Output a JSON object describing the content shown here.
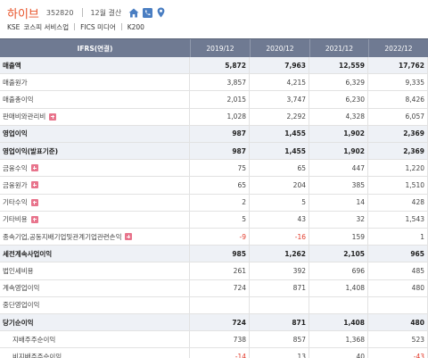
{
  "header": {
    "company": "하이브",
    "code": "352820",
    "fiscal": "12월 결산",
    "market": "KSE",
    "sector": "코스피 서비스업",
    "fics": "FICS 미디어",
    "index": "K200",
    "icons": [
      "home-icon",
      "phone-icon",
      "map-pin-icon"
    ]
  },
  "table": {
    "header_label": "IFRS(연결)",
    "columns": [
      "2019/12",
      "2020/12",
      "2021/12",
      "2022/12"
    ],
    "rows": [
      {
        "label": "매출액",
        "bold": true,
        "indent": 0,
        "expand": false,
        "values": [
          "5,872",
          "7,963",
          "12,559",
          "17,762"
        ]
      },
      {
        "label": "매출원가",
        "bold": false,
        "indent": 1,
        "expand": false,
        "values": [
          "3,857",
          "4,215",
          "6,329",
          "9,335"
        ]
      },
      {
        "label": "매출총이익",
        "bold": false,
        "indent": 1,
        "expand": false,
        "values": [
          "2,015",
          "3,747",
          "6,230",
          "8,426"
        ]
      },
      {
        "label": "판매비와관리비",
        "bold": false,
        "indent": 1,
        "expand": true,
        "values": [
          "1,028",
          "2,292",
          "4,328",
          "6,057"
        ]
      },
      {
        "label": "영업이익",
        "bold": true,
        "indent": 0,
        "expand": false,
        "values": [
          "987",
          "1,455",
          "1,902",
          "2,369"
        ]
      },
      {
        "label": "영업이익(발표기준)",
        "bold": true,
        "indent": 0,
        "expand": false,
        "values": [
          "987",
          "1,455",
          "1,902",
          "2,369"
        ]
      },
      {
        "label": "금융수익",
        "bold": false,
        "indent": 1,
        "expand": true,
        "values": [
          "75",
          "65",
          "447",
          "1,220"
        ]
      },
      {
        "label": "금융원가",
        "bold": false,
        "indent": 1,
        "expand": true,
        "values": [
          "65",
          "204",
          "385",
          "1,510"
        ]
      },
      {
        "label": "기타수익",
        "bold": false,
        "indent": 1,
        "expand": true,
        "values": [
          "2",
          "5",
          "14",
          "428"
        ]
      },
      {
        "label": "기타비용",
        "bold": false,
        "indent": 1,
        "expand": true,
        "values": [
          "5",
          "43",
          "32",
          "1,543"
        ]
      },
      {
        "label": "종속기업,공동지배기업및관계기업관련손익",
        "bold": false,
        "indent": 1,
        "expand": true,
        "values": [
          "-9",
          "-16",
          "159",
          "1"
        ]
      },
      {
        "label": "세전계속사업이익",
        "bold": true,
        "indent": 0,
        "expand": false,
        "values": [
          "985",
          "1,262",
          "2,105",
          "965"
        ]
      },
      {
        "label": "법인세비용",
        "bold": false,
        "indent": 1,
        "expand": false,
        "values": [
          "261",
          "392",
          "696",
          "485"
        ]
      },
      {
        "label": "계속영업이익",
        "bold": false,
        "indent": 1,
        "expand": false,
        "values": [
          "724",
          "871",
          "1,408",
          "480"
        ]
      },
      {
        "label": "중단영업이익",
        "bold": false,
        "indent": 1,
        "expand": false,
        "values": [
          "",
          "",
          "",
          ""
        ]
      },
      {
        "label": "당기순이익",
        "bold": true,
        "indent": 0,
        "expand": false,
        "values": [
          "724",
          "871",
          "1,408",
          "480"
        ]
      },
      {
        "label": "지배주주순이익",
        "bold": false,
        "indent": 2,
        "expand": false,
        "values": [
          "738",
          "857",
          "1,368",
          "523"
        ]
      },
      {
        "label": "비지배주주순이익",
        "bold": false,
        "indent": 2,
        "expand": false,
        "values": [
          "-14",
          "13",
          "40",
          "-43"
        ]
      }
    ]
  },
  "colors": {
    "accent": "#e8542a",
    "header_bg": "#6f7a92",
    "negative": "#e23a2a",
    "icon_blue": "#4a7ec2"
  }
}
